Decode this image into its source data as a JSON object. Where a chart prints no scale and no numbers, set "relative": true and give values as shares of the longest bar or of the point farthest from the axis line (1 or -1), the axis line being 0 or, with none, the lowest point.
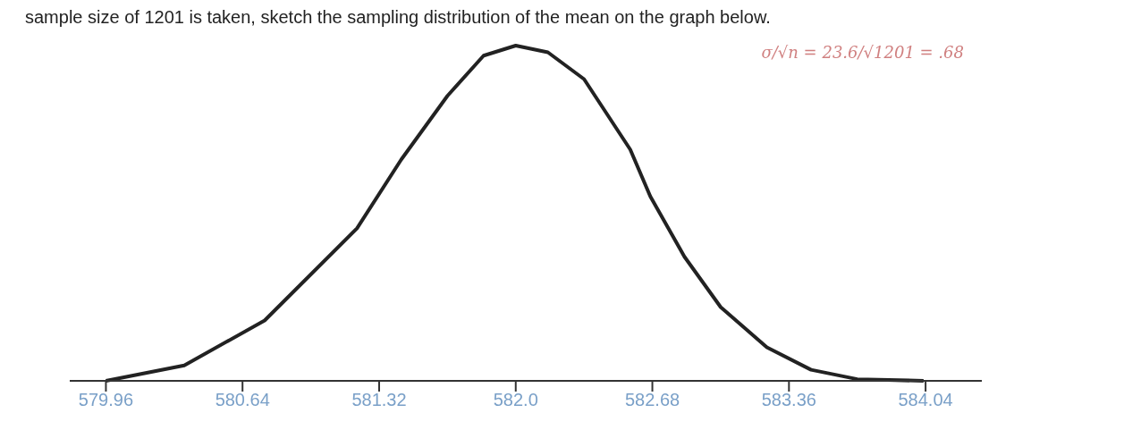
{
  "chart_data": {
    "type": "line",
    "title": "sample size of 1201 is taken, sketch the sampling distribution of the mean on the graph below.",
    "relative": true,
    "x": [
      579.96,
      580.35,
      580.75,
      581.21,
      581.43,
      581.66,
      581.84,
      582.0,
      582.16,
      582.34,
      582.57,
      582.67,
      582.84,
      583.02,
      583.25,
      583.47,
      583.7,
      584.03
    ],
    "series": [
      {
        "color": "#222222",
        "values": [
          0,
          0.046,
          0.18,
          0.455,
          0.66,
          0.85,
          0.97,
          1,
          0.98,
          0.9,
          0.69,
          0.55,
          0.37,
          0.22,
          0.1,
          0.033,
          0.005,
          0
        ]
      }
    ],
    "xlim": [
      579.78,
      584.32
    ],
    "xticks": [
      {
        "value": 579.96,
        "label": "579.96"
      },
      {
        "value": 580.64,
        "label": "580.64"
      },
      {
        "value": 581.32,
        "label": "581.32"
      },
      {
        "value": 582.0,
        "label": "582.0"
      },
      {
        "value": 582.68,
        "label": "582.68"
      },
      {
        "value": 583.36,
        "label": "583.36"
      },
      {
        "value": 584.04,
        "label": "584.04"
      }
    ],
    "tick_labels": "x",
    "marker": "none",
    "line_style": "solid",
    "annotations": [
      "σ/√n = 23.6/√1201 = .68"
    ]
  }
}
